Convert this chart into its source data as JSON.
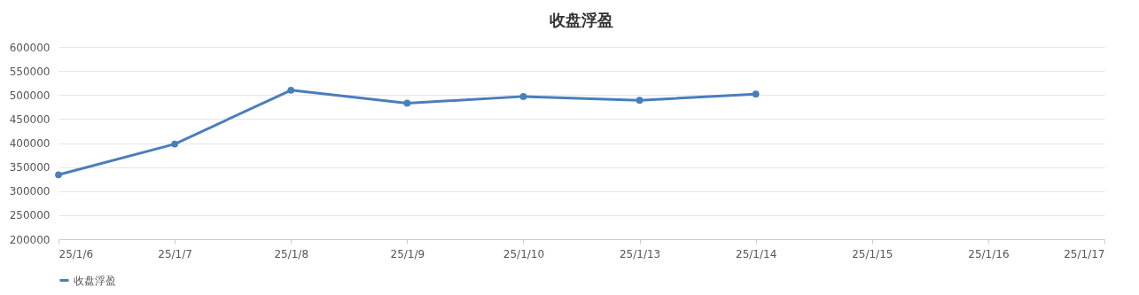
{
  "chart_data": {
    "type": "line",
    "title": "收盘浮盈",
    "categories": [
      "25/1/6",
      "25/1/7",
      "25/1/8",
      "25/1/9",
      "25/1/10",
      "25/1/13",
      "25/1/14",
      "25/1/15",
      "25/1/16",
      "25/1/17"
    ],
    "series": [
      {
        "name": "收盘浮盈",
        "color": "#4a7ebb",
        "values": [
          334000,
          398000,
          510000,
          483000,
          497000,
          489000,
          502000,
          null,
          null,
          null
        ]
      }
    ],
    "ylim": [
      200000,
      600000
    ],
    "yticks": [
      200000,
      250000,
      300000,
      350000,
      400000,
      450000,
      500000,
      550000,
      600000
    ],
    "grid": "y",
    "legend": "bottom",
    "marker": "circle",
    "line_style": "solid"
  }
}
